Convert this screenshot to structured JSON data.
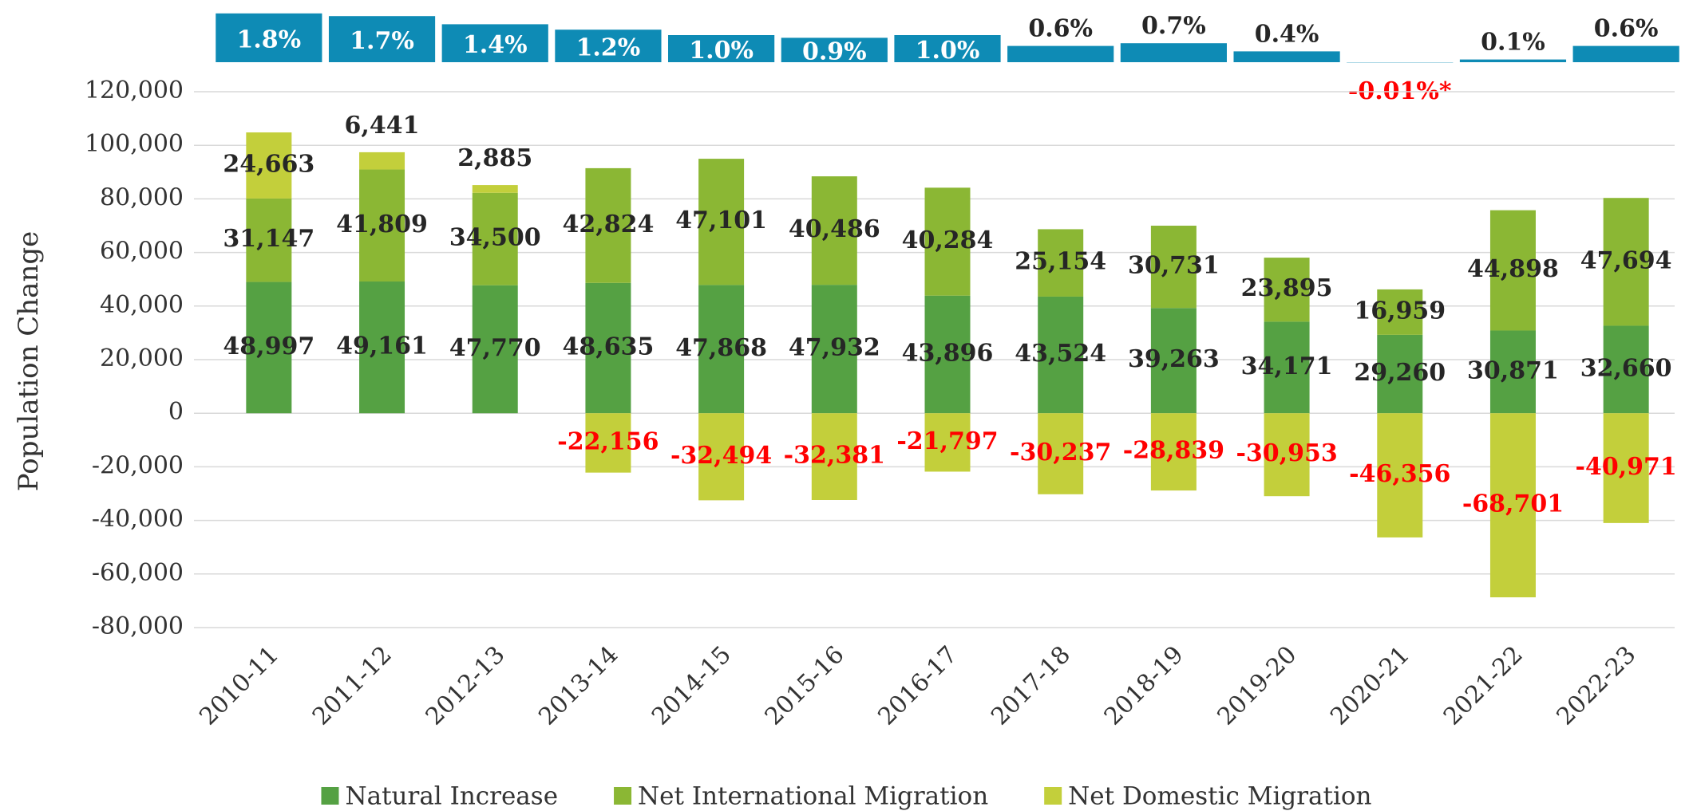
{
  "chart_data": [
    {
      "type": "bar",
      "categories": [
        "2010-11",
        "2011-12",
        "2012-13",
        "2013-14",
        "2014-15",
        "2015-16",
        "2016-17",
        "2017-18",
        "2018-19",
        "2019-20",
        "2020-21",
        "2021-22",
        "2022-23"
      ],
      "values": [
        1.8,
        1.7,
        1.4,
        1.2,
        1.0,
        0.9,
        1.0,
        0.6,
        0.7,
        0.4,
        -0.01,
        0.1,
        0.6
      ],
      "value_labels": [
        "1.8%",
        "1.7%",
        "1.4%",
        "1.2%",
        "1.0%",
        "0.9%",
        "1.0%",
        "0.6%",
        "0.7%",
        "0.4%",
        "-0.01%*",
        "0.1%",
        "0.6%"
      ],
      "color": "#0e8bb5",
      "ylim": [
        0,
        2
      ]
    },
    {
      "type": "stacked_bar",
      "y_label": "Population Change",
      "categories": [
        "2010-11",
        "2011-12",
        "2012-13",
        "2013-14",
        "2014-15",
        "2015-16",
        "2016-17",
        "2017-18",
        "2018-19",
        "2019-20",
        "2020-21",
        "2021-22",
        "2022-23"
      ],
      "series": [
        {
          "name": "Natural Increase",
          "color": "#55a143",
          "values": [
            48997,
            49161,
            47770,
            48635,
            47868,
            47932,
            43896,
            43524,
            39263,
            34171,
            29260,
            30871,
            32660
          ],
          "value_labels": [
            "48,997",
            "49,161",
            "47,770",
            "48,635",
            "47,868",
            "47,932",
            "43,896",
            "43,524",
            "39,263",
            "34,171",
            "29,260",
            "30,871",
            "32,660"
          ]
        },
        {
          "name": "Net International Migration",
          "color": "#8bb734",
          "values": [
            31147,
            41809,
            34500,
            42824,
            47101,
            40486,
            40284,
            25154,
            30731,
            23895,
            16959,
            44898,
            47694
          ],
          "value_labels": [
            "31,147",
            "41,809",
            "34,500",
            "42,824",
            "47,101",
            "40,486",
            "40,284",
            "25,154",
            "30,731",
            "23,895",
            "16,959",
            "44,898",
            "47,694"
          ]
        },
        {
          "name": "Net Domestic Migration",
          "color": "#c3cf3b",
          "values": [
            24663,
            6441,
            2885,
            -22156,
            -32494,
            -32381,
            -21797,
            -30237,
            -28839,
            -30953,
            -46356,
            -68701,
            -40971
          ],
          "value_labels": [
            "24,663",
            "6,441",
            "2,885",
            "-22,156",
            "-32,494",
            "-32,381",
            "-21,797",
            "-30,237",
            "-28,839",
            "-30,953",
            "-46,356",
            "-68,701",
            "-40,971"
          ]
        }
      ],
      "ylim": [
        -80000,
        120000
      ],
      "yticks": [
        {
          "value": -80000,
          "label": "-80,000"
        },
        {
          "value": -60000,
          "label": "-60,000"
        },
        {
          "value": -40000,
          "label": "-40,000"
        },
        {
          "value": -20000,
          "label": "-20,000"
        },
        0,
        {
          "value": 20000,
          "label": "20,000"
        },
        {
          "value": 40000,
          "label": "40,000"
        },
        {
          "value": 60000,
          "label": "60,000"
        },
        {
          "value": 80000,
          "label": "80,000"
        },
        {
          "value": 100000,
          "label": "100,000"
        },
        {
          "value": 120000,
          "label": "120,000"
        }
      ],
      "grid": true,
      "negative_label_color": "#ff0000",
      "legend": "bottom"
    }
  ]
}
